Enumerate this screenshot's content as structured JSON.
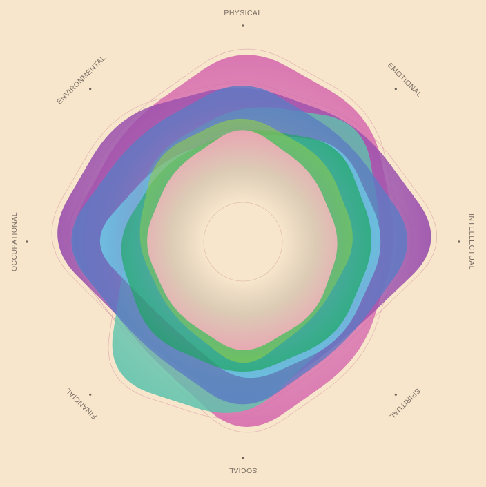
{
  "chart_data": {
    "type": "radar",
    "title": "",
    "axes": [
      "PHYSICAL",
      "EMOTIONAL",
      "INTELLECTUAL",
      "SPIRITUAL",
      "SOCIAL",
      "FINANCIAL",
      "OCCUPATIONAL",
      "ENVIRONMENTAL"
    ],
    "axis_label_text": [
      "PHYSICAL",
      "EMOTIONAL",
      "INTELLECTUAL",
      "SPIRITUAL",
      "SOCIAL",
      "FINANCIAL",
      "OCCUPATIONAL",
      "ENVIRONMENTAL"
    ],
    "value_range": [
      0,
      1
    ],
    "grid": false,
    "legend": "none",
    "series": [
      {
        "color": "#d66aae",
        "values": [
          0.95,
          0.86,
          0.74,
          0.79,
          0.95,
          0.7,
          0.86,
          0.79
        ]
      },
      {
        "color": "#9a4fad",
        "values": [
          0.76,
          0.79,
          0.97,
          0.67,
          0.81,
          0.67,
          0.95,
          0.85
        ]
      },
      {
        "color": "#5ec3ad",
        "values": [
          0.66,
          0.81,
          0.67,
          0.63,
          0.86,
          0.92,
          0.55,
          0.6
        ]
      },
      {
        "color": "#5b7bc4",
        "values": [
          0.79,
          0.7,
          0.84,
          0.69,
          0.83,
          0.69,
          0.88,
          0.72
        ]
      },
      {
        "color": "#6fd0e8",
        "values": [
          0.52,
          0.67,
          0.69,
          0.67,
          0.69,
          0.53,
          0.74,
          0.55
        ]
      },
      {
        "color": "#1aa65e",
        "values": [
          0.55,
          0.66,
          0.64,
          0.64,
          0.65,
          0.64,
          0.61,
          0.53
        ]
      },
      {
        "color": "#8fcc4a",
        "values": [
          0.62,
          0.56,
          0.55,
          0.5,
          0.62,
          0.49,
          0.51,
          0.59
        ]
      },
      {
        "color": "#f07aa2",
        "values": [
          0.57,
          0.47,
          0.47,
          0.49,
          0.55,
          0.47,
          0.48,
          0.48
        ]
      }
    ]
  }
}
